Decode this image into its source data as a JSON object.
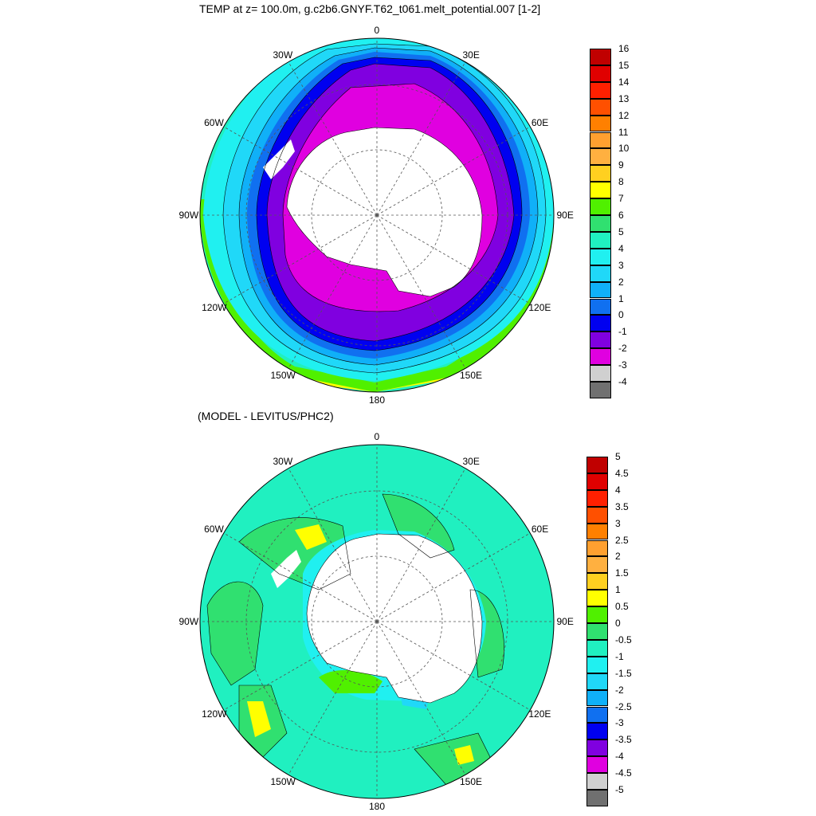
{
  "panels": [
    {
      "title": "TEMP at z= 100.0m, g.c2b6.GNYF.T62_t061.melt_potential.007 [1-2]",
      "lon_labels": [
        "0",
        "30E",
        "60E",
        "90E",
        "120E",
        "150E",
        "180",
        "150W",
        "120W",
        "90W",
        "60W",
        "30W"
      ],
      "colorbar": {
        "labels": [
          "16",
          "15",
          "14",
          "13",
          "12",
          "11",
          "10",
          "9",
          "8",
          "7",
          "6",
          "5",
          "4",
          "3",
          "2",
          "1",
          "0",
          "-1",
          "-2",
          "-3",
          "-4"
        ],
        "colors": [
          "#c00000",
          "#e00000",
          "#ff2000",
          "#ff5000",
          "#ff8000",
          "#ffa030",
          "#ffb040",
          "#ffd020",
          "#ffff00",
          "#50f000",
          "#30e070",
          "#20f0c0",
          "#20f0f0",
          "#20d8f8",
          "#10b0f8",
          "#1070f0",
          "#0000f0",
          "#8000e0",
          "#e000e0",
          "#d0d0d0",
          "#707070"
        ]
      },
      "field_colors": {
        "land": "#ffffff",
        "band_0": "#e000e0",
        "band_1": "#8000e0",
        "band_2": "#0000f0",
        "band_3": "#1070f0",
        "band_4": "#10b0f8",
        "band_5": "#20d8f8",
        "band_6": "#20f0f0",
        "band_7": "#20f0c0",
        "band_8": "#30e070",
        "band_9": "#50f000",
        "band_10": "#ffff00"
      }
    },
    {
      "title": "(MODEL - LEVITUS/PHC2)",
      "lon_labels": [
        "0",
        "30E",
        "60E",
        "90E",
        "120E",
        "150E",
        "180",
        "150W",
        "120W",
        "90W",
        "60W",
        "30W"
      ],
      "colorbar": {
        "labels": [
          "5",
          "4.5",
          "4",
          "3.5",
          "3",
          "2.5",
          "2",
          "1.5",
          "1",
          "0.5",
          "0",
          "-0.5",
          "-1",
          "-1.5",
          "-2",
          "-2.5",
          "-3",
          "-3.5",
          "-4",
          "-4.5",
          "-5"
        ],
        "colors": [
          "#c00000",
          "#e00000",
          "#ff2000",
          "#ff5000",
          "#ff8000",
          "#ffa030",
          "#ffb040",
          "#ffd020",
          "#ffff00",
          "#50f000",
          "#30e070",
          "#20f0c0",
          "#20f0f0",
          "#20d8f8",
          "#10b0f8",
          "#1070f0",
          "#0000f0",
          "#8000e0",
          "#e000e0",
          "#d0d0d0",
          "#707070"
        ]
      },
      "field_colors": {
        "land": "#ffffff",
        "background": "#20f0c0",
        "cyan": "#20f0f0",
        "light_blue": "#20d8f8",
        "green": "#30e070",
        "bright_green": "#50f000",
        "yellow": "#ffff00",
        "orange": "#ffb040"
      }
    }
  ]
}
